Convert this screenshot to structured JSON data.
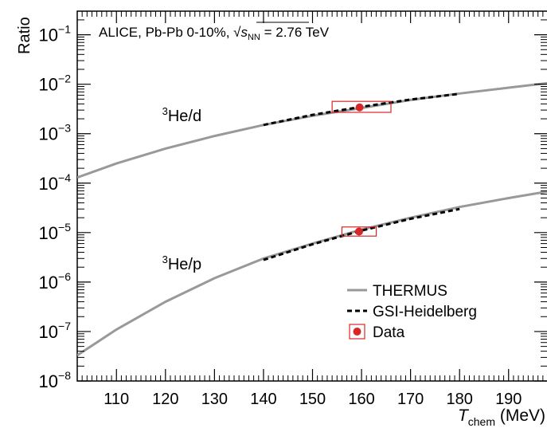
{
  "chart_data": {
    "type": "line",
    "title": "ALICE, Pb-Pb 0-10%, √s_NN = 2.76 TeV",
    "header": {
      "prefix": "ALICE, Pb-Pb 0-10%, ",
      "sqrt": "√",
      "s": "s",
      "sub": "NN",
      "suffix": " = 2.76 TeV"
    },
    "ylabel": "Ratio",
    "xlabel": {
      "main": "T",
      "sub": "chem",
      "unit": " (MeV)"
    },
    "xlim": [
      102,
      198
    ],
    "ylim": [
      1e-08,
      0.3
    ],
    "yscale": "log",
    "xticks": [
      110,
      120,
      130,
      140,
      150,
      160,
      170,
      180,
      190
    ],
    "xtick_labels": [
      "110",
      "120",
      "130",
      "140",
      "150",
      "160",
      "170",
      "180",
      "190"
    ],
    "yticks": [
      {
        "value": 1e-08,
        "base": "10",
        "exp": "−8"
      },
      {
        "value": 1e-07,
        "base": "10",
        "exp": "−7"
      },
      {
        "value": 1e-06,
        "base": "10",
        "exp": "−6"
      },
      {
        "value": 1e-05,
        "base": "10",
        "exp": "−5"
      },
      {
        "value": 0.0001,
        "base": "10",
        "exp": "−4"
      },
      {
        "value": 0.001,
        "base": "10",
        "exp": "−3"
      },
      {
        "value": 0.01,
        "base": "10",
        "exp": "−2"
      },
      {
        "value": 0.1,
        "base": "10",
        "exp": "−1"
      }
    ],
    "series": [
      {
        "name": "THERMUS",
        "style": "solid",
        "color": "#999999",
        "curves": [
          {
            "x": [
              102,
              110,
              120,
              130,
              140,
              150,
              160,
              170,
              180,
              190,
              198
            ],
            "y": [
              0.00013,
              0.00025,
              0.0005,
              0.0009,
              0.0015,
              0.0023,
              0.0033,
              0.0048,
              0.0065,
              0.0085,
              0.0105
            ]
          },
          {
            "x": [
              102,
              110,
              120,
              130,
              140,
              150,
              160,
              170,
              180,
              190,
              198
            ],
            "y": [
              3.3e-08,
              1.1e-07,
              4e-07,
              1.2e-06,
              3e-06,
              6e-06,
              1.15e-05,
              2e-05,
              3.3e-05,
              5e-05,
              6.8e-05
            ]
          }
        ]
      },
      {
        "name": "GSI-Heidelberg",
        "style": "dashed",
        "color": "#000000",
        "curves": [
          {
            "x": [
              140,
              150,
              160,
              170,
              180
            ],
            "y": [
              0.0015,
              0.0024,
              0.0035,
              0.0049,
              0.0064
            ]
          },
          {
            "x": [
              140,
              150,
              160,
              170,
              180
            ],
            "y": [
              2.8e-06,
              5.8e-06,
              1.1e-05,
              1.9e-05,
              3e-05
            ]
          }
        ]
      },
      {
        "name": "Data",
        "style": "marker",
        "color": "#d62728",
        "points": [
          {
            "x": 159.6,
            "y": 0.0034,
            "box_x": [
              154,
              166
            ],
            "box_y": [
              0.0027,
              0.0045
            ]
          },
          {
            "x": 159.5,
            "y": 1.05e-05,
            "box_x": [
              156,
              163
            ],
            "box_y": [
              8.5e-06,
              1.3e-05
            ]
          }
        ]
      }
    ],
    "annotations": [
      {
        "sup": "3",
        "text": "He/d",
        "x": 125,
        "y": 0.0018
      },
      {
        "sup": "3",
        "text": "He/p",
        "x": 125,
        "y": 1.8e-06
      }
    ],
    "legend": {
      "position": "bottom-right",
      "entries": [
        "THERMUS",
        "GSI-Heidelberg",
        "Data"
      ]
    },
    "grid": false
  }
}
